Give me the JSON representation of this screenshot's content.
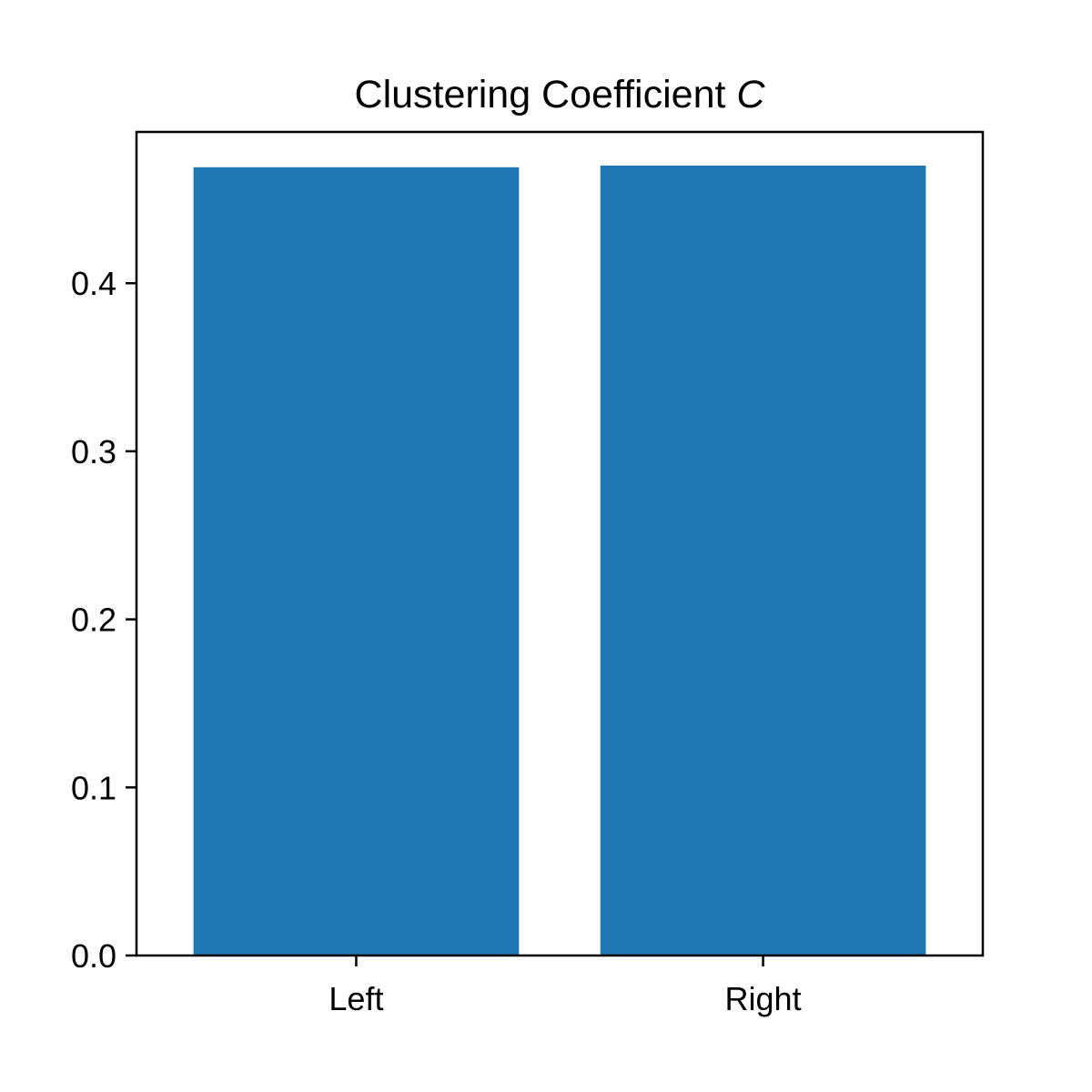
{
  "chart_data": {
    "type": "bar",
    "title": "Clustering Coefficient ",
    "title_symbol": "C",
    "xlabel": "",
    "ylabel": "",
    "categories": [
      "Left",
      "Right"
    ],
    "values": [
      0.469,
      0.47
    ],
    "ylim": [
      0,
      0.49
    ],
    "yticks": [
      0.0,
      0.1,
      0.2,
      0.3,
      0.4
    ],
    "ytick_labels": [
      "0.0",
      "0.1",
      "0.2",
      "0.3",
      "0.4"
    ],
    "bar_color": "#1f77b4",
    "grid": false,
    "legend": "none"
  }
}
